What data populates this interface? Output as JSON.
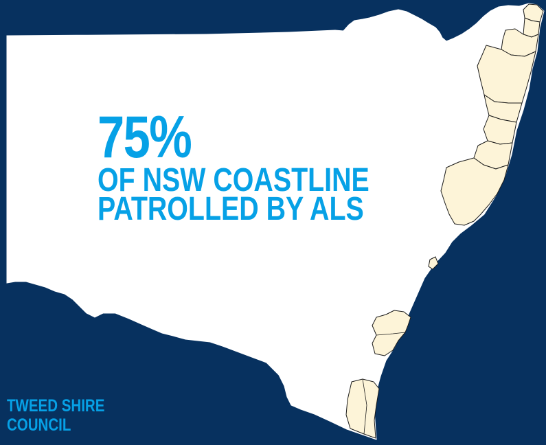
{
  "colors": {
    "background": "#07315f",
    "state_fill": "#ffffff",
    "patrolled_council_fill": "#fdf4d8",
    "accent_text": "#06a1e6"
  },
  "headline": {
    "percent": "75%",
    "line1": "OF NSW COASTLINE",
    "line2": "PATROLLED BY ALS"
  },
  "council_label": {
    "line1": "TWEED SHIRE",
    "line2": "COUNCIL"
  },
  "map": {
    "region": "New South Wales",
    "highlighted_areas": "coastal council areas patrolled by ALS"
  }
}
